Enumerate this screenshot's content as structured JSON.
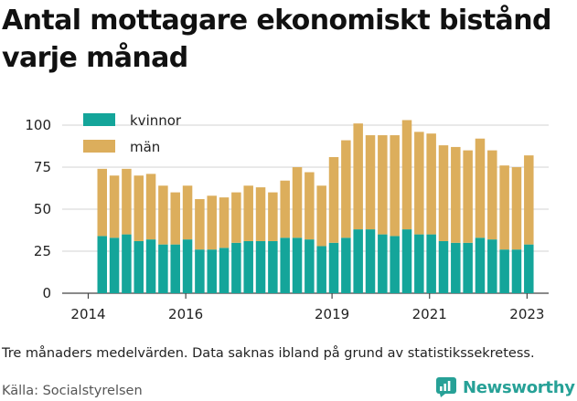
{
  "title": "Antal mottagare ekonomiskt bistånd varje månad",
  "note": "Tre månaders medelvärden. Data saknas ibland på grund av statistikssekretess.",
  "source": "Källa: Socialstyrelsen",
  "brand": {
    "name": "Newsworthy",
    "color": "#27a197",
    "icon": "newsworthy-logo-icon"
  },
  "chart_data": {
    "type": "bar",
    "stacked": true,
    "ylim": [
      0,
      100
    ],
    "yticks": [
      0,
      25,
      50,
      75,
      100
    ],
    "xticks": [
      "2014",
      "2016",
      "2019",
      "2021",
      "2023"
    ],
    "grid": true,
    "legend_position": "top-left",
    "colors": {
      "kvinnor": "#14a59a",
      "män": "#dcae5c"
    },
    "series": [
      {
        "name": "kvinnor",
        "values": [
          34,
          33,
          35,
          31,
          32,
          29,
          29,
          32,
          26,
          26,
          27,
          30,
          31,
          31,
          31,
          33,
          33,
          32,
          28,
          30,
          33,
          38,
          38,
          35,
          34,
          38,
          35,
          35,
          31,
          30,
          30,
          33,
          32,
          26,
          26,
          29
        ]
      },
      {
        "name": "män",
        "values": [
          40,
          37,
          39,
          39,
          39,
          35,
          31,
          32,
          30,
          32,
          30,
          30,
          33,
          32,
          29,
          34,
          42,
          40,
          36,
          51,
          58,
          63,
          56,
          59,
          60,
          65,
          61,
          60,
          57,
          57,
          55,
          59,
          53,
          50,
          49,
          53
        ]
      }
    ]
  }
}
